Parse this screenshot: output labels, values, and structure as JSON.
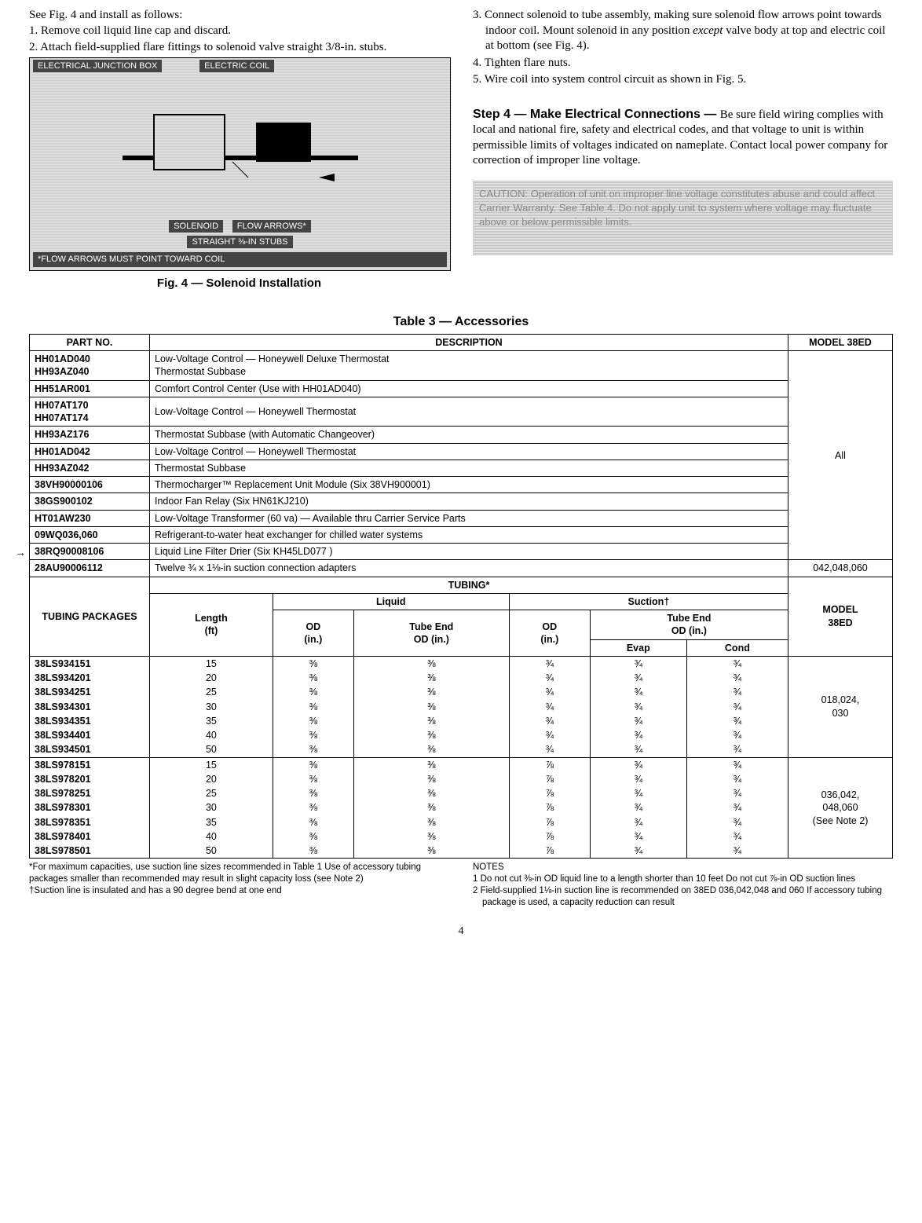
{
  "top": {
    "left_intro": "See Fig. 4 and install as follows:",
    "left_1": "1. Remove coil liquid line cap and discard.",
    "left_2": "2. Attach field-supplied flare fittings to solenoid valve straight 3/8-in. stubs.",
    "fig4_labels": {
      "l1": "ELECTRICAL JUNCTION BOX",
      "l2": "ELECTRIC COIL",
      "l3": "SOLENOID",
      "l4": "FLOW ARROWS*",
      "l5": "STRAIGHT ⅜-IN STUBS",
      "l6": "*FLOW ARROWS MUST POINT TOWARD COIL"
    },
    "fig4_caption": "Fig. 4 — Solenoid Installation",
    "right_3": "3. Connect solenoid to tube assembly, making sure solenoid flow arrows point towards indoor coil. Mount solenoid in any position ",
    "right_3_em": "except",
    "right_3_tail": " valve body at top and electric coil at bottom (see Fig. 4).",
    "right_4": "4. Tighten flare nuts.",
    "right_5": "5. Wire coil into system control circuit as shown in Fig. 5.",
    "step4_head": "Step 4 — Make Electrical Connections — ",
    "step4_body": "Be sure field wiring complies with local and national fire, safety and electrical codes, and that voltage to unit is within permissible limits of voltages indicated on nameplate. Contact local power company for correction of improper line voltage.",
    "caution": "CAUTION: Operation of unit on improper line voltage constitutes abuse and could affect Carrier Warranty. See Table 4. Do not apply unit to system where voltage may fluctuate above or below permissible limits."
  },
  "tbl": {
    "title": "Table 3 — Accessories",
    "h_part": "PART NO.",
    "h_desc": "DESCRIPTION",
    "h_model": "MODEL 38ED",
    "rows": [
      {
        "p": "HH01AD040\nHH93AZ040",
        "d": "Low-Voltage Control — Honeywell Deluxe Thermostat\nThermostat Subbase"
      },
      {
        "p": "HH51AR001",
        "d": "Comfort Control Center (Use with HH01AD040)"
      },
      {
        "p": "HH07AT170\nHH07AT174",
        "d": "Low-Voltage Control — Honeywell Thermostat"
      },
      {
        "p": "HH93AZ176",
        "d": "Thermostat Subbase (with Automatic Changeover)"
      },
      {
        "p": "HH01AD042",
        "d": "Low-Voltage Control — Honeywell Thermostat"
      },
      {
        "p": "HH93AZ042",
        "d": "Thermostat Subbase"
      },
      {
        "p": "38VH90000106",
        "d": "Thermocharger™ Replacement Unit Module (Six 38VH900001)"
      },
      {
        "p": "38GS900102",
        "d": "Indoor Fan Relay (Six HN61KJ210)"
      },
      {
        "p": "HT01AW230",
        "d": "Low-Voltage Transformer (60 va) — Available thru Carrier Service Parts"
      },
      {
        "p": "09WQ036,060",
        "d": "Refrigerant-to-water heat exchanger for chilled water systems"
      }
    ],
    "row_arrow": {
      "p": "38RQ90008106",
      "d": "Liquid Line Filter Drier (Six KH45LD077 )"
    },
    "row_last": {
      "p": "28AU90006112",
      "d": "Twelve ¾ x 1⅛-in  suction connection adapters",
      "m": "042,048,060"
    },
    "model_all": "All",
    "tubing_head": "TUBING*",
    "h_pkg": "TUBING PACKAGES",
    "h_len": "Length\n(ft)",
    "h_liq": "Liquid",
    "h_suc": "Suction†",
    "h_od": "OD\n(in.)",
    "h_tube": "Tube End\nOD (in.)",
    "h_tubeend_od": "Tube End\nOD (in.)",
    "h_evap": "Evap",
    "h_cond": "Cond",
    "h_m38": "MODEL\n38ED",
    "grp1": {
      "parts": [
        "38LS934151",
        "38LS934201",
        "38LS934251",
        "38LS934301",
        "38LS934351",
        "38LS934401",
        "38LS934501"
      ],
      "len": [
        "15",
        "20",
        "25",
        "30",
        "35",
        "40",
        "50"
      ],
      "liq_od": "⅜",
      "liq_te": "⅜",
      "suc_od": "¾",
      "evap": "¾",
      "cond": "¾",
      "model": "018,024,\n030"
    },
    "grp2": {
      "parts": [
        "38LS978151",
        "38LS978201",
        "38LS978251",
        "38LS978301",
        "38LS978351",
        "38LS978401",
        "38LS978501"
      ],
      "len": [
        "15",
        "20",
        "25",
        "30",
        "35",
        "40",
        "50"
      ],
      "liq_od": "⅜",
      "liq_te": "⅜",
      "suc_od": "⅞",
      "evap": "¾",
      "cond": "¾",
      "model": "036,042,\n048,060\n(See Note 2)"
    }
  },
  "foot": {
    "l1": "*For maximum capacities, use suction line sizes recommended in Table 1  Use of accessory tubing packages smaller than recommended may result in slight capacity loss (see Note 2)",
    "l2": "†Suction line is insulated and has a 90 degree bend at one end",
    "r_head": "NOTES",
    "r1": "1   Do not cut ⅜-in  OD liquid line to a length shorter than 10 feet  Do not cut ⅞-in  OD suction lines",
    "r2": "2   Field-supplied 1⅛-in  suction line is recommended on 38ED 036,042,048 and 060  If accessory tubing package is used, a capacity reduction can result"
  },
  "page": "4"
}
